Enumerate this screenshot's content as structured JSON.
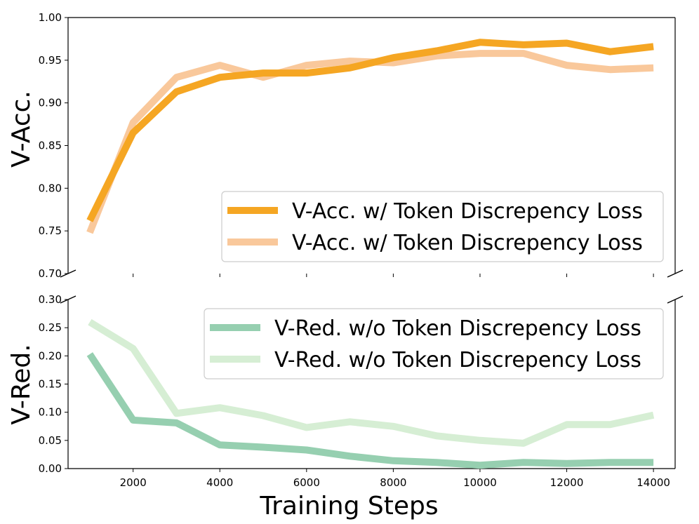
{
  "chart_data": [
    {
      "type": "line",
      "panel": "top",
      "ylabel": "V-Acc.",
      "ylim": [
        0.7,
        1.0
      ],
      "yticks": [
        "0.70",
        "0.75",
        "0.80",
        "0.85",
        "0.90",
        "0.95",
        "1.00"
      ],
      "x": [
        1000,
        2000,
        3000,
        4000,
        5000,
        6000,
        7000,
        8000,
        9000,
        10000,
        11000,
        12000,
        13000,
        14000
      ],
      "legend_position": "lower-right",
      "series": [
        {
          "name": "V-Acc. w/ Token Discrepency Loss",
          "color": "#f5a623",
          "values": [
            0.762,
            0.865,
            0.913,
            0.93,
            0.935,
            0.935,
            0.941,
            0.953,
            0.961,
            0.971,
            0.968,
            0.97,
            0.96,
            0.966
          ]
        },
        {
          "name": "V-Acc. w/ Token Discrepency Loss",
          "color": "#f9c89b",
          "values": [
            0.748,
            0.877,
            0.93,
            0.944,
            0.93,
            0.944,
            0.949,
            0.947,
            0.955,
            0.958,
            0.958,
            0.944,
            0.939,
            0.941
          ]
        }
      ]
    },
    {
      "type": "line",
      "panel": "bottom",
      "ylabel": "V-Red.",
      "xlabel": "Training Steps",
      "ylim": [
        0.0,
        0.3
      ],
      "yticks": [
        "0.00",
        "0.05",
        "0.10",
        "0.15",
        "0.20",
        "0.25",
        "0.30"
      ],
      "xlim": [
        500,
        14500
      ],
      "xticks": [
        "2000",
        "4000",
        "6000",
        "8000",
        "10000",
        "12000",
        "14000"
      ],
      "x": [
        1000,
        2000,
        3000,
        4000,
        5000,
        6000,
        7000,
        8000,
        9000,
        10000,
        11000,
        12000,
        13000,
        14000
      ],
      "legend_position": "upper-right",
      "series": [
        {
          "name": "V-Red. w/o Token Discrepency Loss",
          "color": "#96cfb0",
          "values": [
            0.203,
            0.086,
            0.081,
            0.042,
            0.038,
            0.033,
            0.022,
            0.014,
            0.011,
            0.006,
            0.011,
            0.009,
            0.011,
            0.011
          ]
        },
        {
          "name": "V-Red. w/o Token Discrepency Loss",
          "color": "#d6eed4",
          "values": [
            0.26,
            0.213,
            0.098,
            0.108,
            0.094,
            0.073,
            0.083,
            0.075,
            0.058,
            0.05,
            0.045,
            0.078,
            0.078,
            0.095
          ]
        }
      ]
    }
  ]
}
